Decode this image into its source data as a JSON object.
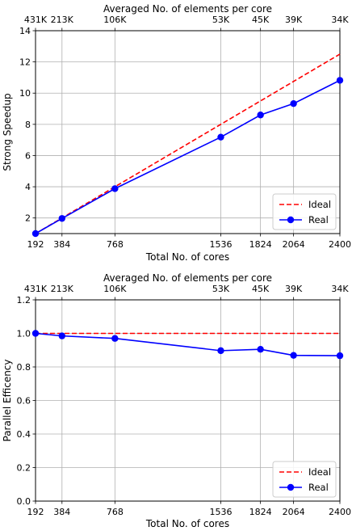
{
  "chart_data": [
    {
      "type": "line",
      "title": "Averaged No. of elements per core",
      "xlabel": "Total No. of cores",
      "ylabel": "Strong Speedup",
      "x": [
        192,
        384,
        768,
        1536,
        1824,
        2064,
        2400
      ],
      "x_tick_labels": [
        "192",
        "384",
        "768",
        "1536",
        "1824",
        "2064",
        "2400"
      ],
      "top_tick_labels": [
        "431K",
        "213K",
        "106K",
        "53K",
        "45K",
        "39K",
        "34K"
      ],
      "xlim": [
        192,
        2400
      ],
      "ylim": [
        1,
        14
      ],
      "y_ticks": [
        2,
        4,
        6,
        8,
        10,
        12,
        14
      ],
      "grid": true,
      "legend_position": "lower-right",
      "series": [
        {
          "name": "Ideal",
          "style": "dashed",
          "color": "#ff0000",
          "marker": false,
          "x": [
            192,
            2400
          ],
          "values": [
            1,
            12.5
          ]
        },
        {
          "name": "Real",
          "style": "solid",
          "color": "#0000ff",
          "marker": true,
          "x": [
            192,
            384,
            768,
            1536,
            1824,
            2064,
            2400
          ],
          "values": [
            1.0,
            1.97,
            3.88,
            7.18,
            8.6,
            9.33,
            10.82
          ]
        }
      ]
    },
    {
      "type": "line",
      "title": "Averaged No. of elements per core",
      "xlabel": "Total No. of cores",
      "ylabel": "Parallel Efficency",
      "x": [
        192,
        384,
        768,
        1536,
        1824,
        2064,
        2400
      ],
      "x_tick_labels": [
        "192",
        "384",
        "768",
        "1536",
        "1824",
        "2064",
        "2400"
      ],
      "top_tick_labels": [
        "431K",
        "213K",
        "106K",
        "53K",
        "45K",
        "39K",
        "34K"
      ],
      "xlim": [
        192,
        2400
      ],
      "ylim": [
        0,
        1.2
      ],
      "y_ticks": [
        0.0,
        0.2,
        0.4,
        0.6,
        0.8,
        1.0,
        1.2
      ],
      "y_tick_labels": [
        "0.0",
        "0.2",
        "0.4",
        "0.6",
        "0.8",
        "1.0",
        "1.2"
      ],
      "grid": true,
      "legend_position": "lower-right",
      "series": [
        {
          "name": "Ideal",
          "style": "dashed",
          "color": "#ff0000",
          "marker": false,
          "x": [
            192,
            2400
          ],
          "values": [
            1.0,
            1.0
          ]
        },
        {
          "name": "Real",
          "style": "solid",
          "color": "#0000ff",
          "marker": true,
          "x": [
            192,
            384,
            768,
            1536,
            1824,
            2064,
            2400
          ],
          "values": [
            1.0,
            0.985,
            0.97,
            0.897,
            0.905,
            0.869,
            0.867
          ]
        }
      ]
    }
  ]
}
